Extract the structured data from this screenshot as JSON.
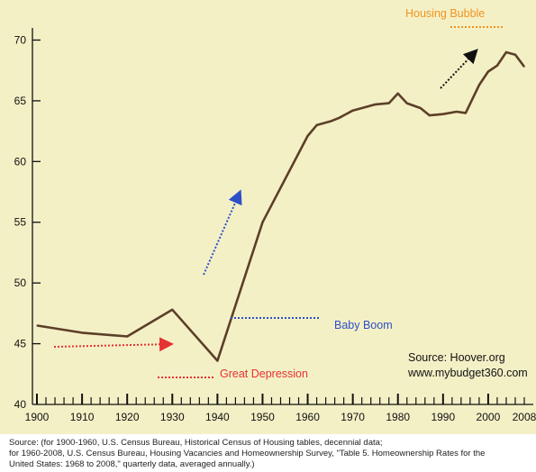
{
  "chart_data": {
    "type": "line",
    "x": [
      1900,
      1910,
      1920,
      1930,
      1940,
      1950,
      1960,
      1962,
      1965,
      1967,
      1970,
      1972,
      1975,
      1978,
      1980,
      1982,
      1985,
      1987,
      1990,
      1993,
      1995,
      1998,
      2000,
      2002,
      2004,
      2006,
      2008
    ],
    "y": [
      46.5,
      45.9,
      45.6,
      47.8,
      43.6,
      55.0,
      62.1,
      63.0,
      63.3,
      63.6,
      64.2,
      64.4,
      64.7,
      64.8,
      65.6,
      64.8,
      64.4,
      63.8,
      63.9,
      64.1,
      64.0,
      66.3,
      67.4,
      67.9,
      69.0,
      68.8,
      67.8
    ],
    "xlim": [
      1899,
      2010
    ],
    "ylim": [
      40,
      71
    ],
    "x_ticks": [
      1900,
      1910,
      1920,
      1930,
      1940,
      1950,
      1960,
      1970,
      1980,
      1990,
      2000,
      2008
    ],
    "y_ticks": [
      45,
      50,
      55,
      60,
      65,
      70
    ],
    "grid": false,
    "line_color": "#5c3f28",
    "annotations": [
      {
        "text": "Housing Bubble",
        "color": "#f0931e"
      },
      {
        "text": "Baby Boom",
        "color": "#2d50c8"
      },
      {
        "text": "Great Depression",
        "color": "#e53232"
      }
    ],
    "source_lines": [
      "Source: Hoover.org",
      "www.mybudget360.com"
    ]
  },
  "footnote": {
    "line1": "Source: (for 1900-1960, U.S. Census Bureau, Historical Census of Housing tables, decennial data;",
    "line2": "for 1960-2008, U.S. Census Bureau, Housing Vacancies and Homeownership Survey,  \"Table 5. Homeownership Rates for the",
    "line3": "United States:  1968 to 2008,\" quarterly data, averaged annually.)"
  }
}
